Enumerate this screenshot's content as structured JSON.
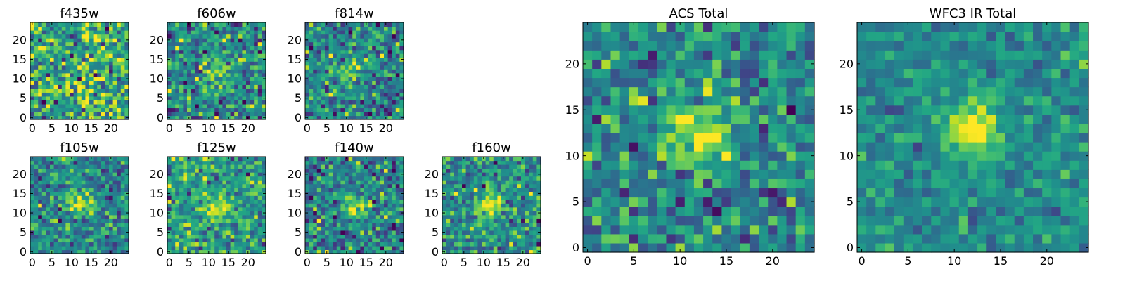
{
  "chart_data": [
    {
      "type": "heatmap",
      "title": "f435w",
      "xlabel": "",
      "ylabel": "",
      "x_range": [
        -0.5,
        24.5
      ],
      "y_range": [
        -0.5,
        24.5
      ],
      "x_ticks": [
        0,
        5,
        10,
        15,
        20
      ],
      "y_ticks": [
        0,
        5,
        10,
        15,
        20
      ],
      "grid": false,
      "colormap": "viridis",
      "source_peak": null,
      "peak_strength": 0.0,
      "noise_level": 0.42,
      "background": 0.6,
      "seed": 11
    },
    {
      "type": "heatmap",
      "title": "f606w",
      "xlabel": "",
      "ylabel": "",
      "x_range": [
        -0.5,
        24.5
      ],
      "y_range": [
        -0.5,
        24.5
      ],
      "x_ticks": [
        0,
        5,
        10,
        15,
        20
      ],
      "y_ticks": [
        0,
        5,
        10,
        15,
        20
      ],
      "grid": false,
      "colormap": "viridis",
      "source_peak": [
        12,
        12
      ],
      "peak_strength": 0.35,
      "noise_level": 0.36,
      "background": 0.48,
      "seed": 22
    },
    {
      "type": "heatmap",
      "title": "f814w",
      "xlabel": "",
      "ylabel": "",
      "x_range": [
        -0.5,
        24.5
      ],
      "y_range": [
        -0.5,
        24.5
      ],
      "x_ticks": [
        0,
        5,
        10,
        15,
        20
      ],
      "y_ticks": [
        0,
        5,
        10,
        15,
        20
      ],
      "grid": false,
      "colormap": "viridis",
      "source_peak": [
        11,
        12
      ],
      "peak_strength": 0.45,
      "noise_level": 0.35,
      "background": 0.45,
      "seed": 33
    },
    {
      "type": "heatmap",
      "title": "f105w",
      "xlabel": "",
      "ylabel": "",
      "x_range": [
        -0.5,
        24.5
      ],
      "y_range": [
        -0.5,
        24.5
      ],
      "x_ticks": [
        0,
        5,
        10,
        15,
        20
      ],
      "y_ticks": [
        0,
        5,
        10,
        15,
        20
      ],
      "grid": false,
      "colormap": "viridis",
      "source_peak": [
        12,
        13
      ],
      "peak_strength": 0.5,
      "noise_level": 0.3,
      "background": 0.45,
      "seed": 44
    },
    {
      "type": "heatmap",
      "title": "f125w",
      "xlabel": "",
      "ylabel": "",
      "x_range": [
        -0.5,
        24.5
      ],
      "y_range": [
        -0.5,
        24.5
      ],
      "x_ticks": [
        0,
        5,
        10,
        15,
        20
      ],
      "y_ticks": [
        0,
        5,
        10,
        15,
        20
      ],
      "grid": false,
      "colormap": "viridis",
      "source_peak": [
        12,
        11
      ],
      "peak_strength": 0.45,
      "noise_level": 0.32,
      "background": 0.55,
      "seed": 55
    },
    {
      "type": "heatmap",
      "title": "f140w",
      "xlabel": "",
      "ylabel": "",
      "x_range": [
        -0.5,
        24.5
      ],
      "y_range": [
        -0.5,
        24.5
      ],
      "x_ticks": [
        0,
        5,
        10,
        15,
        20
      ],
      "y_ticks": [
        0,
        5,
        10,
        15,
        20
      ],
      "grid": false,
      "colormap": "viridis",
      "source_peak": [
        12,
        12
      ],
      "peak_strength": 0.55,
      "noise_level": 0.33,
      "background": 0.45,
      "seed": 66
    },
    {
      "type": "heatmap",
      "title": "f160w",
      "xlabel": "",
      "ylabel": "",
      "x_range": [
        -0.5,
        24.5
      ],
      "y_range": [
        -0.5,
        24.5
      ],
      "x_ticks": [
        0,
        5,
        10,
        15,
        20
      ],
      "y_ticks": [
        0,
        5,
        10,
        15,
        20
      ],
      "grid": false,
      "colormap": "viridis",
      "source_peak": [
        12,
        12
      ],
      "peak_strength": 0.5,
      "noise_level": 0.33,
      "background": 0.5,
      "seed": 77
    },
    {
      "type": "heatmap",
      "title": "ACS Total",
      "xlabel": "",
      "ylabel": "",
      "x_range": [
        -0.5,
        24.5
      ],
      "y_range": [
        -0.5,
        24.5
      ],
      "x_ticks": [
        0,
        5,
        10,
        15,
        20
      ],
      "y_ticks": [
        0,
        5,
        10,
        15,
        20
      ],
      "grid": false,
      "colormap": "viridis",
      "source_peak": [
        12,
        12
      ],
      "peak_strength": 0.55,
      "noise_level": 0.32,
      "background": 0.48,
      "seed": 88
    },
    {
      "type": "heatmap",
      "title": "WFC3 IR Total",
      "xlabel": "",
      "ylabel": "",
      "x_range": [
        -0.5,
        24.5
      ],
      "y_range": [
        -0.5,
        24.5
      ],
      "x_ticks": [
        0,
        5,
        10,
        15,
        20
      ],
      "y_ticks": [
        0,
        5,
        10,
        15,
        20
      ],
      "grid": false,
      "colormap": "viridis",
      "source_peak": [
        12,
        13
      ],
      "peak_strength": 0.55,
      "noise_level": 0.2,
      "background": 0.48,
      "seed": 99
    }
  ]
}
